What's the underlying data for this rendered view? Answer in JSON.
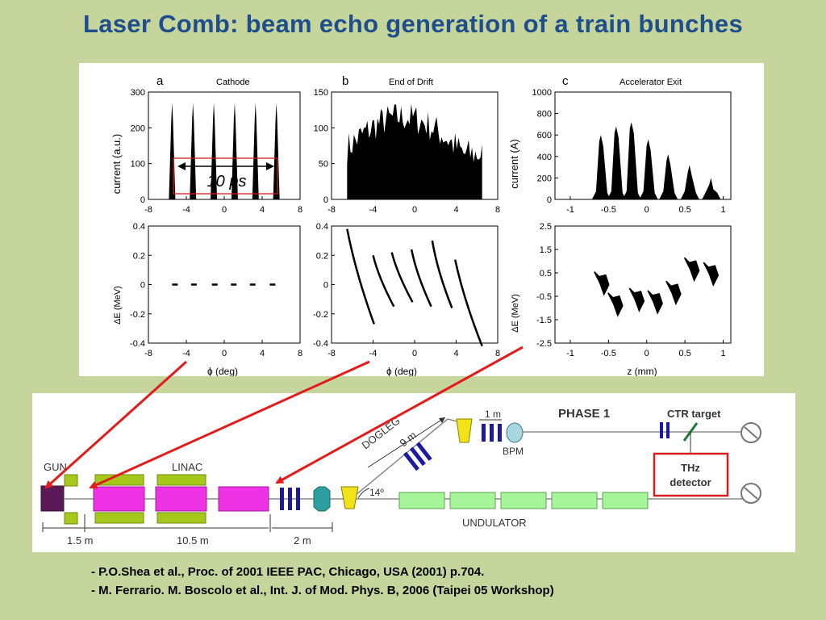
{
  "slide": {
    "title": "Laser Comb: beam echo generation of a train bunches",
    "references": [
      "- P.O.Shea et al., Proc. of 2001 IEEE PAC, Chicago, USA (2001) p.704.",
      "- M. Ferrario. M. Boscolo et al., Int. J. of Mod. Phys. B, 2006 (Taipei 05 Workshop)"
    ]
  },
  "panels": {
    "a": {
      "letter": "a",
      "heading": "Cathode",
      "top_ylabel": "current (a.u.)",
      "bottom_ylabel": "ΔE (MeV)",
      "xlabel": "ϕ (deg)",
      "annotation": "10 ps"
    },
    "b": {
      "letter": "b",
      "heading": "End of Drift",
      "xlabel": "ϕ (deg)"
    },
    "c": {
      "letter": "c",
      "heading": "Accelerator Exit",
      "top_ylabel": "current (A)",
      "bottom_ylabel": "ΔE (MeV)",
      "xlabel": "z (mm)"
    }
  },
  "chart_data": [
    {
      "id": "a-top",
      "type": "area",
      "xlim": [
        -8,
        8
      ],
      "ylim": [
        0,
        300
      ],
      "xticks": [
        "-8",
        "-4",
        "0",
        "4",
        "8"
      ],
      "yticks": [
        "0",
        "100",
        "200",
        "300"
      ],
      "peaks_x": [
        -5.5,
        -3.3,
        -1.1,
        1.1,
        3.3,
        5.5
      ],
      "peak_height": 270
    },
    {
      "id": "b-top",
      "type": "area",
      "xlim": [
        -8,
        8
      ],
      "ylim": [
        0,
        150
      ],
      "xticks": [
        "-8",
        "-4",
        "0",
        "4",
        "8"
      ],
      "yticks": [
        "0",
        "50",
        "100",
        "150"
      ],
      "range_x": [
        -6.5,
        6.5
      ],
      "approx_level": 115
    },
    {
      "id": "c-top",
      "type": "area",
      "xlim": [
        -1.2,
        1.1
      ],
      "ylim": [
        0,
        1000
      ],
      "xticks": [
        "-1",
        "-0.5",
        "0",
        "0.5",
        "1"
      ],
      "yticks": [
        "0",
        "200",
        "400",
        "600",
        "800",
        "1000"
      ],
      "peaks": [
        {
          "x": -0.6,
          "y": 600
        },
        {
          "x": -0.4,
          "y": 680
        },
        {
          "x": -0.2,
          "y": 720
        },
        {
          "x": 0.02,
          "y": 560
        },
        {
          "x": 0.28,
          "y": 420
        },
        {
          "x": 0.56,
          "y": 320
        },
        {
          "x": 0.84,
          "y": 200
        }
      ]
    },
    {
      "id": "a-bottom",
      "type": "scatter",
      "xlim": [
        -8,
        8
      ],
      "ylim": [
        -0.4,
        0.4
      ],
      "xticks": [
        "-8",
        "-4",
        "0",
        "4",
        "8"
      ],
      "yticks": [
        "-0.4",
        "-0.2",
        "0",
        "0.2",
        "0.4"
      ],
      "segments_x": [
        -5.5,
        -3.5,
        -1.3,
        0.7,
        2.7,
        4.8
      ],
      "y": 0
    },
    {
      "id": "b-bottom",
      "type": "scatter",
      "xlim": [
        -8,
        8
      ],
      "ylim": [
        -0.4,
        0.4
      ],
      "xticks": [
        "-8",
        "-4",
        "0",
        "4",
        "8"
      ],
      "yticks": [
        "-0.4",
        "-0.2",
        "0",
        "0.2",
        "0.4"
      ],
      "streaks": [
        [
          -6.5,
          0.38,
          -3.9,
          -0.27
        ],
        [
          -4.0,
          0.2,
          -2.0,
          -0.15
        ],
        [
          -2.2,
          0.22,
          -0.2,
          -0.12
        ],
        [
          -0.3,
          0.24,
          1.6,
          -0.15
        ],
        [
          1.7,
          0.3,
          3.6,
          -0.16
        ],
        [
          3.9,
          0.17,
          6.5,
          -0.42
        ]
      ]
    },
    {
      "id": "c-bottom",
      "type": "scatter",
      "xlim": [
        -1.2,
        1.1
      ],
      "ylim": [
        -2.5,
        2.5
      ],
      "xticks": [
        "-1",
        "-0.5",
        "0",
        "0.5",
        "1"
      ],
      "yticks": [
        "-2.5",
        "-1.5",
        "-0.5",
        "0.5",
        "1.5",
        "2.5"
      ],
      "clusters": [
        {
          "x": -0.58,
          "y": 0.2
        },
        {
          "x": -0.4,
          "y": -0.7
        },
        {
          "x": -0.12,
          "y": -0.5
        },
        {
          "x": 0.12,
          "y": -0.6
        },
        {
          "x": 0.36,
          "y": -0.2
        },
        {
          "x": 0.6,
          "y": 0.8
        },
        {
          "x": 0.85,
          "y": 0.6
        }
      ]
    }
  ],
  "beamline": {
    "labels": {
      "gun": "GUN",
      "linac": "LINAC",
      "dogleg": "DOGLEG",
      "dogleg_len": "9 m",
      "one_m": "1 m",
      "bpm": "BPM",
      "phase": "PHASE 1",
      "ctr": "CTR target",
      "thz_line1": "THz",
      "thz_line2": "detector",
      "angle": "14º",
      "undulator": "UNDULATOR",
      "dim1": "1.5 m",
      "dim2": "10.5 m",
      "dim3": "2 m"
    },
    "colors": {
      "gun": "#5b1a57",
      "magenta": "#f032e6",
      "green": "#a5c81a",
      "quad": "#1c1aa0",
      "undulator": "#a6f59a",
      "yellow": "#f2e21a",
      "teal": "#2e9fa0",
      "thz_border": "#d62020",
      "arrow": "#e21b1b"
    }
  }
}
